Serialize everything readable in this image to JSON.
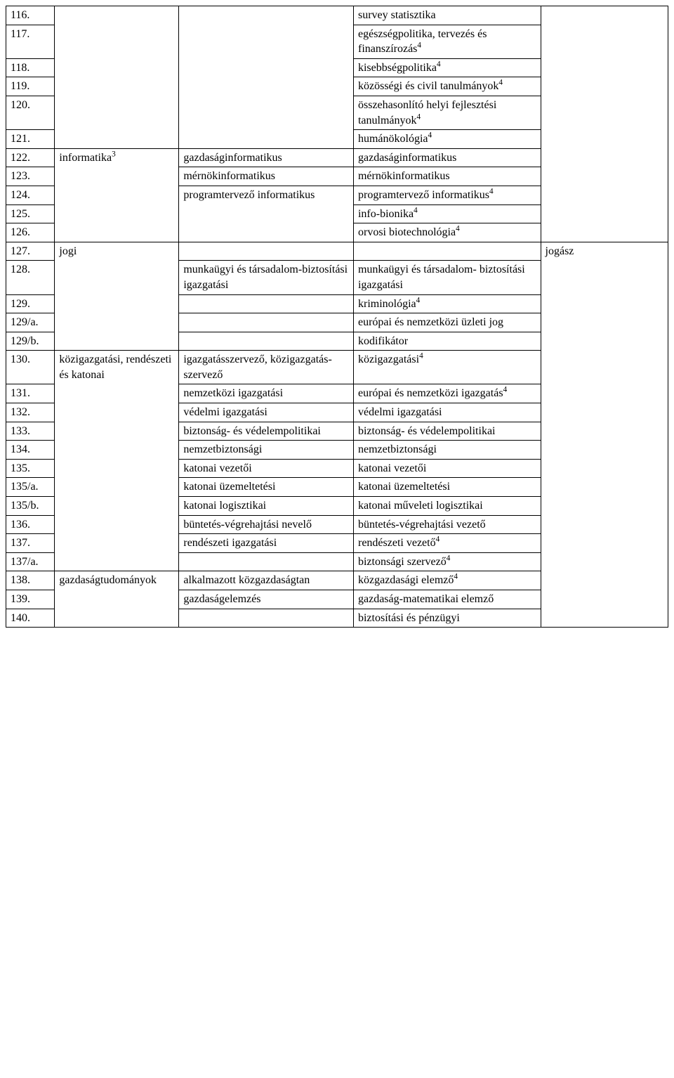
{
  "rows": [
    {
      "n": "116.",
      "c1": "",
      "c2": "",
      "c3": "survey statisztika",
      "c4": ""
    },
    {
      "n": "117.",
      "c1": "",
      "c2": "",
      "c3html": "egészségpolitika, tervezés és finanszírozás<sup>4</sup>",
      "c4": ""
    },
    {
      "n": "118.",
      "c1": "",
      "c2": "",
      "c3html": "kisebbségpolitika<sup>4</sup>",
      "c4": ""
    },
    {
      "n": "119.",
      "c1": "",
      "c2": "",
      "c3html": "közösségi és civil tanulmányok<sup>4</sup>",
      "c4": ""
    },
    {
      "n": "120.",
      "c1": "",
      "c2": "",
      "c3html": "összehasonlító helyi fejlesztési tanulmányok<sup>4</sup>",
      "c4": ""
    },
    {
      "n": "121.",
      "c1": "",
      "c2": "",
      "c3html": "humánökológia<sup>4</sup>",
      "c4": ""
    },
    {
      "n": "122.",
      "c1html": "informatika<sup>3</sup>",
      "c2": "gazdaságinformatikus",
      "c3": "gazdaságinformatikus",
      "c4": ""
    },
    {
      "n": "123.",
      "c1": "",
      "c2": "mérnökinformatikus",
      "c3": "mérnökinformatikus",
      "c4": ""
    },
    {
      "n": "124.",
      "c1": "",
      "c2": "programtervező informatikus",
      "c3html": "programtervező informatikus<sup>4</sup>",
      "c4": ""
    },
    {
      "n": "125.",
      "c1": "",
      "c2": "",
      "c3html": "info-bionika<sup>4</sup>",
      "c4": ""
    },
    {
      "n": "126.",
      "c1": "",
      "c2": "",
      "c3html": "orvosi biotechnológia<sup>4</sup>",
      "c4": ""
    },
    {
      "n": "127.",
      "c1": "jogi",
      "c2": "",
      "c3": "",
      "c4": "jogász"
    },
    {
      "n": "128.",
      "c1": "",
      "c2": "munkaügyi és társadalom-biztosítási igazgatási",
      "c3": "munkaügyi és társadalom- biztosítási igazgatási",
      "c4": ""
    },
    {
      "n": "129.",
      "c1": "",
      "c2": "",
      "c3html": "kriminológia<sup>4</sup>",
      "c4": ""
    },
    {
      "n": "129/a.",
      "c1": "",
      "c2": "",
      "c3": "európai és nemzetközi üzleti jog",
      "c4": ""
    },
    {
      "n": "129/b.",
      "c1": "",
      "c2": "",
      "c3": "kodifikátor",
      "c4": ""
    },
    {
      "n": "130.",
      "c1": "közigazgatási, rendészeti és katonai",
      "c2": "igazgatásszervező, közigazgatás-szervező",
      "c3html": "közigazgatási<sup>4</sup>",
      "c4": ""
    },
    {
      "n": "131.",
      "c1": "",
      "c2": "nemzetközi igazgatási",
      "c3html": "európai és nemzetközi igazgatás<sup>4</sup>",
      "c4": ""
    },
    {
      "n": "132.",
      "c1": "",
      "c2": "védelmi igazgatási",
      "c3": "védelmi igazgatási",
      "c4": ""
    },
    {
      "n": "133.",
      "c1": "",
      "c2": "biztonság- és védelempolitikai",
      "c3": "biztonság- és védelempolitikai",
      "c4": ""
    },
    {
      "n": "134.",
      "c1": "",
      "c2": "nemzetbiztonsági",
      "c3": "nemzetbiztonsági",
      "c4": ""
    },
    {
      "n": "135.",
      "c1": "",
      "c2": "katonai vezetői",
      "c3": "katonai vezetői",
      "c4": ""
    },
    {
      "n": "135/a.",
      "c1": "",
      "c2": "katonai üzemeltetési",
      "c3": "katonai üzemeltetési",
      "c4": ""
    },
    {
      "n": "135/b.",
      "c1": "",
      "c2": "katonai logisztikai",
      "c3": "katonai műveleti logisztikai",
      "c4": ""
    },
    {
      "n": "136.",
      "c1": "",
      "c2": "büntetés-végrehajtási nevelő",
      "c3": "büntetés-végrehajtási vezető",
      "c4": ""
    },
    {
      "n": "137.",
      "c1": "",
      "c2": "rendészeti igazgatási",
      "c3html": "rendészeti vezető<sup>4</sup>",
      "c4": ""
    },
    {
      "n": "137/a.",
      "c1": "",
      "c2": "",
      "c3html": "biztonsági szervező<sup>4</sup>",
      "c4": ""
    },
    {
      "n": "138.",
      "c1": "gazdaságtudományok",
      "c2": "alkalmazott közgazdaságtan",
      "c3html": "közgazdasági elemző<sup>4</sup>",
      "c4": ""
    },
    {
      "n": "139.",
      "c1": "",
      "c2": "gazdaságelemzés",
      "c3": "gazdaság-matematikai elemző",
      "c4": ""
    },
    {
      "n": "140.",
      "c1": "",
      "c2": "",
      "c3": "biztosítási és pénzügyi",
      "c4": ""
    }
  ],
  "col1Groups": [
    {
      "start": 0,
      "end": 5
    },
    {
      "start": 6,
      "end": 10
    },
    {
      "start": 11,
      "end": 15
    },
    {
      "start": 16,
      "end": 26
    },
    {
      "start": 27,
      "end": 29
    }
  ],
  "col2Groups": [
    {
      "start": 0,
      "end": 5
    },
    {
      "start": 8,
      "end": 10
    }
  ],
  "col4Groups": [
    {
      "start": 0,
      "end": 10
    },
    {
      "start": 11,
      "end": 29
    }
  ],
  "style": {
    "font_family": "Times New Roman",
    "font_size_pt": 12,
    "border_color": "#000000",
    "background_color": "#ffffff",
    "text_color": "#000000"
  }
}
